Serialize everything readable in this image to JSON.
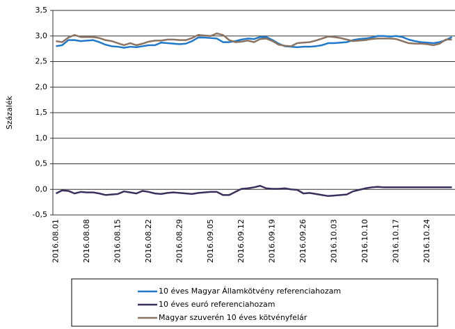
{
  "chart_data": {
    "type": "line",
    "ylabel": "Százalék",
    "ylim": [
      -0.5,
      3.5
    ],
    "yticks": [
      {
        "value": -0.5,
        "label": "-0,5"
      },
      {
        "value": 0,
        "label": "0,0"
      },
      {
        "value": 0.5,
        "label": "0,5"
      },
      {
        "value": 1,
        "label": "1,0"
      },
      {
        "value": 1.5,
        "label": "1,5"
      },
      {
        "value": 2,
        "label": "2,0"
      },
      {
        "value": 2.5,
        "label": "2,5"
      },
      {
        "value": 3,
        "label": "3,0"
      },
      {
        "value": 3.5,
        "label": "3,5"
      }
    ],
    "grid": true,
    "legend": "bottom",
    "categories": [
      "2016.08.01",
      null,
      null,
      null,
      null,
      "2016.08.08",
      null,
      null,
      null,
      null,
      "2016.08.15",
      null,
      null,
      null,
      null,
      "2016.08.22",
      null,
      null,
      null,
      null,
      "2016.08.29",
      null,
      null,
      null,
      null,
      "2016.09.05",
      null,
      null,
      null,
      null,
      "2016.09.12",
      null,
      null,
      null,
      null,
      "2016.09.19",
      null,
      null,
      null,
      null,
      "2016.09.26",
      null,
      null,
      null,
      null,
      "2016.10.03",
      null,
      null,
      null,
      null,
      "2016.10.10",
      null,
      null,
      null,
      null,
      "2016.10.17",
      null,
      null,
      null,
      null,
      "2016.10.24",
      null,
      null,
      null,
      null
    ],
    "series": [
      {
        "name": "10 éves Magyar Államkötvény referenciahozam",
        "color": "#1f78c8",
        "values": [
          2.8,
          2.82,
          2.92,
          2.92,
          2.9,
          2.91,
          2.92,
          2.88,
          2.83,
          2.8,
          2.79,
          2.77,
          2.79,
          2.78,
          2.8,
          2.82,
          2.82,
          2.87,
          2.86,
          2.85,
          2.84,
          2.85,
          2.9,
          2.97,
          2.97,
          2.96,
          2.95,
          2.88,
          2.88,
          2.9,
          2.93,
          2.95,
          2.94,
          2.98,
          2.98,
          2.92,
          2.85,
          2.8,
          2.79,
          2.78,
          2.79,
          2.79,
          2.8,
          2.82,
          2.86,
          2.86,
          2.87,
          2.88,
          2.92,
          2.94,
          2.95,
          2.97,
          3.0,
          3.0,
          2.99,
          3.0,
          2.98,
          2.93,
          2.9,
          2.88,
          2.87,
          2.86,
          2.88,
          2.92,
          2.98
        ]
      },
      {
        "name": "10 éves euró referenciahozam",
        "color": "#3c2f5e",
        "values": [
          -0.08,
          -0.02,
          -0.03,
          -0.08,
          -0.05,
          -0.06,
          -0.06,
          -0.08,
          -0.11,
          -0.1,
          -0.09,
          -0.04,
          -0.06,
          -0.08,
          -0.03,
          -0.05,
          -0.08,
          -0.09,
          -0.07,
          -0.06,
          -0.07,
          -0.08,
          -0.09,
          -0.07,
          -0.06,
          -0.05,
          -0.05,
          -0.11,
          -0.11,
          -0.05,
          0.01,
          0.02,
          0.04,
          0.07,
          0.02,
          0.01,
          0.01,
          0.02,
          0.0,
          -0.01,
          -0.08,
          -0.07,
          -0.09,
          -0.11,
          -0.13,
          -0.12,
          -0.11,
          -0.1,
          -0.04,
          -0.01,
          0.02,
          0.04,
          0.05,
          0.04,
          0.04,
          0.04,
          0.04,
          0.04,
          0.04,
          0.04,
          0.04,
          0.04,
          0.04,
          0.04,
          0.04
        ]
      },
      {
        "name": "Magyar szuverén 10 éves kötvényfelár",
        "color": "#8b7361",
        "values": [
          2.9,
          2.88,
          2.97,
          3.02,
          2.98,
          2.98,
          2.98,
          2.96,
          2.92,
          2.9,
          2.86,
          2.82,
          2.86,
          2.82,
          2.85,
          2.89,
          2.91,
          2.91,
          2.93,
          2.93,
          2.92,
          2.92,
          2.96,
          3.02,
          3.01,
          3.0,
          3.05,
          3.02,
          2.92,
          2.88,
          2.89,
          2.91,
          2.88,
          2.94,
          2.95,
          2.9,
          2.83,
          2.81,
          2.8,
          2.86,
          2.87,
          2.88,
          2.91,
          2.95,
          2.99,
          2.98,
          2.96,
          2.93,
          2.9,
          2.91,
          2.92,
          2.94,
          2.95,
          2.95,
          2.95,
          2.94,
          2.9,
          2.86,
          2.85,
          2.85,
          2.84,
          2.82,
          2.85,
          2.93,
          2.93
        ]
      }
    ]
  }
}
